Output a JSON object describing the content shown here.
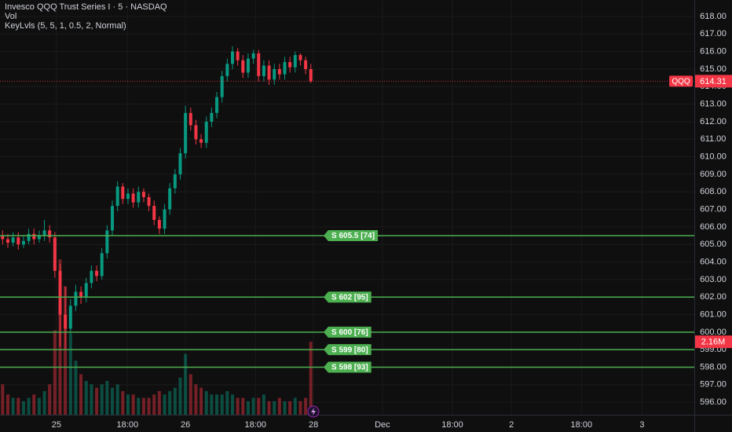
{
  "chart_data": {
    "type": "candlestick",
    "title": "Invesco QQQ Trust Series I · 5 · NASDAQ",
    "indicators": [
      "Vol",
      "KeyLvls (5, 5, 1, 0.5, 2, Normal)"
    ],
    "symbol": "QQQ",
    "last_price": 614.31,
    "up_color": "#089981",
    "down_color": "#f23645",
    "level_color": "#4caf50",
    "ylim": [
      595.29,
      618.94
    ],
    "yticks": [
      {
        "value": 596,
        "label": "596.00"
      },
      {
        "value": 597,
        "label": "597.00"
      },
      {
        "value": 598,
        "label": "598.00"
      },
      {
        "value": 599,
        "label": "599.00"
      },
      {
        "value": 600,
        "label": "600.00"
      },
      {
        "value": 601,
        "label": "601.00"
      },
      {
        "value": 602,
        "label": "602.00"
      },
      {
        "value": 603,
        "label": "603.00"
      },
      {
        "value": 604,
        "label": "604.00"
      },
      {
        "value": 605,
        "label": "605.00"
      },
      {
        "value": 606,
        "label": "606.00"
      },
      {
        "value": 607,
        "label": "607.00"
      },
      {
        "value": 608,
        "label": "608.00"
      },
      {
        "value": 609,
        "label": "609.00"
      },
      {
        "value": 610,
        "label": "610.00"
      },
      {
        "value": 611,
        "label": "611.00"
      },
      {
        "value": 612,
        "label": "612.00"
      },
      {
        "value": 613,
        "label": "613.00"
      },
      {
        "value": 614,
        "label": "614.00"
      },
      {
        "value": 615,
        "label": "615.00"
      },
      {
        "value": 616,
        "label": "616.00"
      },
      {
        "value": 617,
        "label": "617.00"
      },
      {
        "value": 618,
        "label": "618.00"
      }
    ],
    "xlim": [
      -0.5,
      132.4
    ],
    "xticks": [
      {
        "value": 10.3,
        "label": "25"
      },
      {
        "value": 23.9,
        "label": "18:00"
      },
      {
        "value": 35,
        "label": "26"
      },
      {
        "value": 48.4,
        "label": "18:00"
      },
      {
        "value": 59.5,
        "label": "28"
      },
      {
        "value": 72.7,
        "label": "Dec"
      },
      {
        "value": 86.1,
        "label": "18:00"
      },
      {
        "value": 97.4,
        "label": "2"
      },
      {
        "value": 110.8,
        "label": "18:00"
      },
      {
        "value": 122.4,
        "label": "3"
      }
    ],
    "open": [
      605.5,
      605.3,
      605.1,
      605.4,
      605.0,
      605.2,
      605.6,
      605.3,
      605.5,
      605.8,
      605.4,
      603.5,
      601.0,
      600.2,
      601.5,
      602.3,
      602.0,
      602.8,
      603.5,
      603.2,
      604.5,
      605.8,
      607.2,
      608.3,
      607.6,
      607.9,
      607.4,
      608.0,
      607.7,
      607.2,
      606.4,
      605.9,
      607.0,
      608.2,
      609.0,
      610.2,
      612.5,
      611.8,
      611.0,
      610.8,
      612.0,
      612.5,
      613.4,
      614.6,
      615.3,
      616.0,
      615.5,
      614.8,
      615.6,
      615.9,
      614.6,
      615.2,
      614.4,
      615.0,
      614.7,
      615.4,
      615.1,
      615.8,
      615.5,
      615.0
    ],
    "high": [
      605.8,
      605.6,
      605.7,
      605.7,
      605.5,
      605.9,
      605.9,
      605.8,
      606.4,
      606.1,
      605.7,
      603.9,
      602.6,
      601.9,
      602.7,
      602.6,
      603.1,
      603.8,
      603.8,
      604.8,
      606.1,
      607.5,
      608.6,
      608.5,
      608.2,
      608.2,
      608.3,
      608.2,
      607.9,
      607.5,
      606.6,
      607.3,
      608.5,
      609.3,
      610.5,
      612.9,
      612.8,
      612.1,
      611.3,
      612.3,
      612.8,
      613.7,
      614.9,
      615.6,
      616.3,
      616.2,
      615.8,
      615.9,
      616.1,
      616.1,
      615.5,
      615.5,
      615.3,
      615.3,
      615.7,
      615.7,
      616.0,
      615.9,
      615.7,
      615.3
    ],
    "low": [
      605.0,
      604.8,
      604.9,
      604.7,
      604.8,
      605.0,
      605.0,
      605.1,
      605.2,
      605.1,
      603.1,
      599.2,
      599.0,
      599.9,
      601.2,
      601.6,
      601.7,
      602.5,
      602.9,
      603.0,
      604.2,
      605.5,
      606.9,
      607.3,
      607.3,
      607.1,
      607.1,
      607.4,
      606.9,
      606.1,
      605.6,
      605.6,
      606.7,
      607.9,
      608.7,
      609.9,
      611.5,
      610.7,
      610.5,
      610.5,
      611.7,
      612.2,
      613.1,
      614.3,
      615.0,
      615.2,
      614.5,
      614.5,
      615.3,
      614.3,
      614.3,
      614.1,
      614.1,
      614.4,
      614.4,
      614.8,
      614.8,
      615.2,
      614.7,
      614.2
    ],
    "close": [
      605.3,
      605.1,
      605.4,
      605.0,
      605.2,
      605.6,
      605.3,
      605.5,
      605.8,
      605.4,
      603.5,
      601.0,
      600.2,
      601.5,
      602.3,
      602.0,
      602.8,
      603.5,
      603.2,
      604.5,
      605.8,
      607.2,
      608.3,
      607.6,
      607.9,
      607.4,
      608.0,
      607.7,
      607.2,
      606.4,
      605.9,
      607.0,
      608.2,
      609.0,
      610.2,
      612.5,
      611.8,
      611.0,
      610.8,
      612.0,
      612.5,
      613.4,
      614.6,
      615.3,
      616.0,
      615.5,
      614.8,
      615.6,
      615.9,
      614.6,
      615.2,
      614.4,
      615.0,
      614.7,
      615.4,
      615.1,
      615.8,
      615.5,
      615.0,
      614.31
    ],
    "volume": {
      "values": [
        0.9,
        0.6,
        0.5,
        0.5,
        0.4,
        0.5,
        0.6,
        0.5,
        0.7,
        0.9,
        2.5,
        4.6,
        3.8,
        2.4,
        1.6,
        1.2,
        1.0,
        0.9,
        0.8,
        0.9,
        1.0,
        0.8,
        0.9,
        0.7,
        0.6,
        0.6,
        0.5,
        0.5,
        0.5,
        0.6,
        0.7,
        0.6,
        0.7,
        0.8,
        1.1,
        1.8,
        1.2,
        0.9,
        0.8,
        0.7,
        0.6,
        0.6,
        0.6,
        0.7,
        0.6,
        0.5,
        0.5,
        0.4,
        0.5,
        0.5,
        0.6,
        0.4,
        0.4,
        0.5,
        0.4,
        0.4,
        0.5,
        0.4,
        0.5,
        2.16
      ],
      "last_label": "2.16M",
      "max": 5
    },
    "levels": [
      {
        "value": 605.5,
        "label": "S 605.5 [74]"
      },
      {
        "value": 602,
        "label": "S 602 [95]"
      },
      {
        "value": 600,
        "label": "S 600 [76]"
      },
      {
        "value": 599,
        "label": "S 599 [80]"
      },
      {
        "value": 598,
        "label": "S 598 [93]"
      }
    ]
  }
}
